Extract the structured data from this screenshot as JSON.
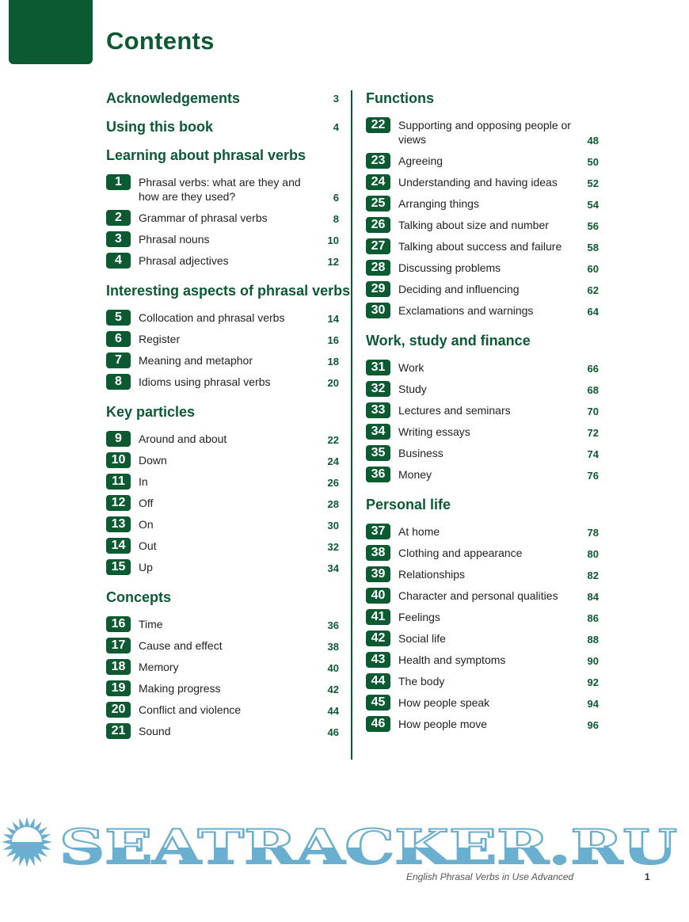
{
  "title": "Contents",
  "colors": {
    "accent": "#0b5a32",
    "watermark": "#6aaed0"
  },
  "left_column": [
    {
      "type": "header",
      "label": "Acknowledgements",
      "page": "3"
    },
    {
      "type": "header",
      "label": "Using this book",
      "page": "4"
    },
    {
      "type": "header",
      "label": "Learning about phrasal verbs"
    },
    {
      "type": "item",
      "num": "1",
      "label": "Phrasal verbs: what are they and how are they used?",
      "page": "6",
      "two_line": true
    },
    {
      "type": "item",
      "num": "2",
      "label": "Grammar of phrasal verbs",
      "page": "8"
    },
    {
      "type": "item",
      "num": "3",
      "label": "Phrasal nouns",
      "page": "10"
    },
    {
      "type": "item",
      "num": "4",
      "label": "Phrasal adjectives",
      "page": "12"
    },
    {
      "type": "header",
      "label": "Interesting aspects of phrasal verbs"
    },
    {
      "type": "item",
      "num": "5",
      "label": "Collocation and phrasal verbs",
      "page": "14"
    },
    {
      "type": "item",
      "num": "6",
      "label": "Register",
      "page": "16"
    },
    {
      "type": "item",
      "num": "7",
      "label": "Meaning and metaphor",
      "page": "18"
    },
    {
      "type": "item",
      "num": "8",
      "label": "Idioms using phrasal verbs",
      "page": "20"
    },
    {
      "type": "header",
      "label": "Key particles"
    },
    {
      "type": "item",
      "num": "9",
      "label": "Around and about",
      "page": "22"
    },
    {
      "type": "item",
      "num": "10",
      "label": "Down",
      "page": "24"
    },
    {
      "type": "item",
      "num": "11",
      "label": "In",
      "page": "26"
    },
    {
      "type": "item",
      "num": "12",
      "label": "Off",
      "page": "28"
    },
    {
      "type": "item",
      "num": "13",
      "label": "On",
      "page": "30"
    },
    {
      "type": "item",
      "num": "14",
      "label": "Out",
      "page": "32"
    },
    {
      "type": "item",
      "num": "15",
      "label": "Up",
      "page": "34"
    },
    {
      "type": "header",
      "label": "Concepts"
    },
    {
      "type": "item",
      "num": "16",
      "label": "Time",
      "page": "36"
    },
    {
      "type": "item",
      "num": "17",
      "label": "Cause and effect",
      "page": "38"
    },
    {
      "type": "item",
      "num": "18",
      "label": "Memory",
      "page": "40"
    },
    {
      "type": "item",
      "num": "19",
      "label": "Making progress",
      "page": "42"
    },
    {
      "type": "item",
      "num": "20",
      "label": "Conflict and violence",
      "page": "44"
    },
    {
      "type": "item",
      "num": "21",
      "label": "Sound",
      "page": "46"
    }
  ],
  "right_column": [
    {
      "type": "header",
      "label": "Functions"
    },
    {
      "type": "item",
      "num": "22",
      "label": "Supporting and opposing people or views",
      "page": "48",
      "two_line": true
    },
    {
      "type": "item",
      "num": "23",
      "label": "Agreeing",
      "page": "50"
    },
    {
      "type": "item",
      "num": "24",
      "label": "Understanding and having ideas",
      "page": "52"
    },
    {
      "type": "item",
      "num": "25",
      "label": "Arranging things",
      "page": "54"
    },
    {
      "type": "item",
      "num": "26",
      "label": "Talking about size and number",
      "page": "56"
    },
    {
      "type": "item",
      "num": "27",
      "label": "Talking about success and failure",
      "page": "58"
    },
    {
      "type": "item",
      "num": "28",
      "label": "Discussing problems",
      "page": "60"
    },
    {
      "type": "item",
      "num": "29",
      "label": "Deciding and influencing",
      "page": "62"
    },
    {
      "type": "item",
      "num": "30",
      "label": "Exclamations and warnings",
      "page": "64"
    },
    {
      "type": "header",
      "label": "Work, study and finance"
    },
    {
      "type": "item",
      "num": "31",
      "label": "Work",
      "page": "66"
    },
    {
      "type": "item",
      "num": "32",
      "label": "Study",
      "page": "68"
    },
    {
      "type": "item",
      "num": "33",
      "label": "Lectures and seminars",
      "page": "70"
    },
    {
      "type": "item",
      "num": "34",
      "label": "Writing essays",
      "page": "72"
    },
    {
      "type": "item",
      "num": "35",
      "label": "Business",
      "page": "74"
    },
    {
      "type": "item",
      "num": "36",
      "label": "Money",
      "page": "76"
    },
    {
      "type": "header",
      "label": "Personal life"
    },
    {
      "type": "item",
      "num": "37",
      "label": "At home",
      "page": "78"
    },
    {
      "type": "item",
      "num": "38",
      "label": "Clothing and appearance",
      "page": "80"
    },
    {
      "type": "item",
      "num": "39",
      "label": "Relationships",
      "page": "82"
    },
    {
      "type": "item",
      "num": "40",
      "label": "Character and personal qualities",
      "page": "84"
    },
    {
      "type": "item",
      "num": "41",
      "label": "Feelings",
      "page": "86"
    },
    {
      "type": "item",
      "num": "42",
      "label": "Social life",
      "page": "88"
    },
    {
      "type": "item",
      "num": "43",
      "label": "Health and symptoms",
      "page": "90"
    },
    {
      "type": "item",
      "num": "44",
      "label": "The body",
      "page": "92"
    },
    {
      "type": "item",
      "num": "45",
      "label": "How people speak",
      "page": "94"
    },
    {
      "type": "item",
      "num": "46",
      "label": "How people move",
      "page": "96"
    }
  ],
  "footer": {
    "book_title": "English Phrasal Verbs in Use Advanced",
    "page_number": "1"
  },
  "watermark": {
    "text": "SEATRACKER.RU",
    "icon": "sun-icon"
  }
}
